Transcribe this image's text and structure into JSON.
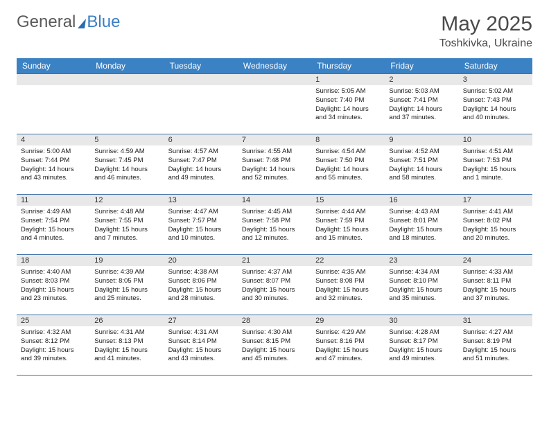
{
  "logo": {
    "text1": "General",
    "text2": "Blue"
  },
  "title": "May 2025",
  "location": "Toshkivka, Ukraine",
  "colors": {
    "header_bg": "#3b82c4",
    "header_text": "#ffffff",
    "row_border": "#3b6ea5",
    "daynum_bg": "#e8e8e8",
    "text": "#1a1a1a"
  },
  "day_headers": [
    "Sunday",
    "Monday",
    "Tuesday",
    "Wednesday",
    "Thursday",
    "Friday",
    "Saturday"
  ],
  "weeks": [
    [
      {
        "n": "",
        "sr": "",
        "ss": "",
        "dl": ""
      },
      {
        "n": "",
        "sr": "",
        "ss": "",
        "dl": ""
      },
      {
        "n": "",
        "sr": "",
        "ss": "",
        "dl": ""
      },
      {
        "n": "",
        "sr": "",
        "ss": "",
        "dl": ""
      },
      {
        "n": "1",
        "sr": "Sunrise: 5:05 AM",
        "ss": "Sunset: 7:40 PM",
        "dl": "Daylight: 14 hours and 34 minutes."
      },
      {
        "n": "2",
        "sr": "Sunrise: 5:03 AM",
        "ss": "Sunset: 7:41 PM",
        "dl": "Daylight: 14 hours and 37 minutes."
      },
      {
        "n": "3",
        "sr": "Sunrise: 5:02 AM",
        "ss": "Sunset: 7:43 PM",
        "dl": "Daylight: 14 hours and 40 minutes."
      }
    ],
    [
      {
        "n": "4",
        "sr": "Sunrise: 5:00 AM",
        "ss": "Sunset: 7:44 PM",
        "dl": "Daylight: 14 hours and 43 minutes."
      },
      {
        "n": "5",
        "sr": "Sunrise: 4:59 AM",
        "ss": "Sunset: 7:45 PM",
        "dl": "Daylight: 14 hours and 46 minutes."
      },
      {
        "n": "6",
        "sr": "Sunrise: 4:57 AM",
        "ss": "Sunset: 7:47 PM",
        "dl": "Daylight: 14 hours and 49 minutes."
      },
      {
        "n": "7",
        "sr": "Sunrise: 4:55 AM",
        "ss": "Sunset: 7:48 PM",
        "dl": "Daylight: 14 hours and 52 minutes."
      },
      {
        "n": "8",
        "sr": "Sunrise: 4:54 AM",
        "ss": "Sunset: 7:50 PM",
        "dl": "Daylight: 14 hours and 55 minutes."
      },
      {
        "n": "9",
        "sr": "Sunrise: 4:52 AM",
        "ss": "Sunset: 7:51 PM",
        "dl": "Daylight: 14 hours and 58 minutes."
      },
      {
        "n": "10",
        "sr": "Sunrise: 4:51 AM",
        "ss": "Sunset: 7:53 PM",
        "dl": "Daylight: 15 hours and 1 minute."
      }
    ],
    [
      {
        "n": "11",
        "sr": "Sunrise: 4:49 AM",
        "ss": "Sunset: 7:54 PM",
        "dl": "Daylight: 15 hours and 4 minutes."
      },
      {
        "n": "12",
        "sr": "Sunrise: 4:48 AM",
        "ss": "Sunset: 7:55 PM",
        "dl": "Daylight: 15 hours and 7 minutes."
      },
      {
        "n": "13",
        "sr": "Sunrise: 4:47 AM",
        "ss": "Sunset: 7:57 PM",
        "dl": "Daylight: 15 hours and 10 minutes."
      },
      {
        "n": "14",
        "sr": "Sunrise: 4:45 AM",
        "ss": "Sunset: 7:58 PM",
        "dl": "Daylight: 15 hours and 12 minutes."
      },
      {
        "n": "15",
        "sr": "Sunrise: 4:44 AM",
        "ss": "Sunset: 7:59 PM",
        "dl": "Daylight: 15 hours and 15 minutes."
      },
      {
        "n": "16",
        "sr": "Sunrise: 4:43 AM",
        "ss": "Sunset: 8:01 PM",
        "dl": "Daylight: 15 hours and 18 minutes."
      },
      {
        "n": "17",
        "sr": "Sunrise: 4:41 AM",
        "ss": "Sunset: 8:02 PM",
        "dl": "Daylight: 15 hours and 20 minutes."
      }
    ],
    [
      {
        "n": "18",
        "sr": "Sunrise: 4:40 AM",
        "ss": "Sunset: 8:03 PM",
        "dl": "Daylight: 15 hours and 23 minutes."
      },
      {
        "n": "19",
        "sr": "Sunrise: 4:39 AM",
        "ss": "Sunset: 8:05 PM",
        "dl": "Daylight: 15 hours and 25 minutes."
      },
      {
        "n": "20",
        "sr": "Sunrise: 4:38 AM",
        "ss": "Sunset: 8:06 PM",
        "dl": "Daylight: 15 hours and 28 minutes."
      },
      {
        "n": "21",
        "sr": "Sunrise: 4:37 AM",
        "ss": "Sunset: 8:07 PM",
        "dl": "Daylight: 15 hours and 30 minutes."
      },
      {
        "n": "22",
        "sr": "Sunrise: 4:35 AM",
        "ss": "Sunset: 8:08 PM",
        "dl": "Daylight: 15 hours and 32 minutes."
      },
      {
        "n": "23",
        "sr": "Sunrise: 4:34 AM",
        "ss": "Sunset: 8:10 PM",
        "dl": "Daylight: 15 hours and 35 minutes."
      },
      {
        "n": "24",
        "sr": "Sunrise: 4:33 AM",
        "ss": "Sunset: 8:11 PM",
        "dl": "Daylight: 15 hours and 37 minutes."
      }
    ],
    [
      {
        "n": "25",
        "sr": "Sunrise: 4:32 AM",
        "ss": "Sunset: 8:12 PM",
        "dl": "Daylight: 15 hours and 39 minutes."
      },
      {
        "n": "26",
        "sr": "Sunrise: 4:31 AM",
        "ss": "Sunset: 8:13 PM",
        "dl": "Daylight: 15 hours and 41 minutes."
      },
      {
        "n": "27",
        "sr": "Sunrise: 4:31 AM",
        "ss": "Sunset: 8:14 PM",
        "dl": "Daylight: 15 hours and 43 minutes."
      },
      {
        "n": "28",
        "sr": "Sunrise: 4:30 AM",
        "ss": "Sunset: 8:15 PM",
        "dl": "Daylight: 15 hours and 45 minutes."
      },
      {
        "n": "29",
        "sr": "Sunrise: 4:29 AM",
        "ss": "Sunset: 8:16 PM",
        "dl": "Daylight: 15 hours and 47 minutes."
      },
      {
        "n": "30",
        "sr": "Sunrise: 4:28 AM",
        "ss": "Sunset: 8:17 PM",
        "dl": "Daylight: 15 hours and 49 minutes."
      },
      {
        "n": "31",
        "sr": "Sunrise: 4:27 AM",
        "ss": "Sunset: 8:19 PM",
        "dl": "Daylight: 15 hours and 51 minutes."
      }
    ]
  ]
}
